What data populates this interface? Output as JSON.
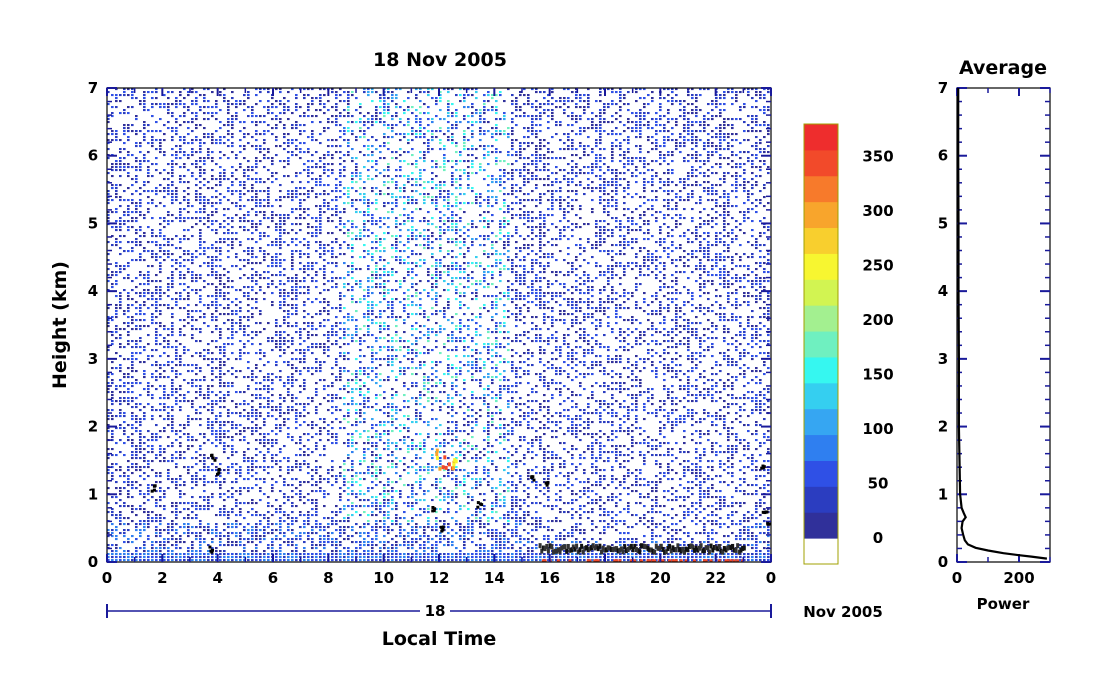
{
  "chart_data": [
    {
      "type": "heatmap",
      "title": "18 Nov 2005",
      "xlabel": "Local Time",
      "ylabel": "Height (km)",
      "x_ticks": [
        "0",
        "2",
        "4",
        "6",
        "8",
        "10",
        "12",
        "14",
        "16",
        "18",
        "20",
        "22",
        "0"
      ],
      "y_ticks": [
        "0",
        "1",
        "2",
        "3",
        "4",
        "5",
        "6",
        "7"
      ],
      "xlim": [
        0,
        24
      ],
      "ylim": [
        0,
        7
      ],
      "date_axis": {
        "day_label": "18",
        "month_label": "Nov 2005"
      },
      "colorbar": {
        "ticks": [
          "0",
          "50",
          "100",
          "150",
          "200",
          "250",
          "300",
          "350"
        ],
        "range": [
          0,
          380
        ],
        "colors": [
          "#ffffff",
          "#30309a",
          "#2b3dc0",
          "#2f50e6",
          "#2f7ff0",
          "#36a6f2",
          "#35cff0",
          "#36f7f0",
          "#6ff0c0",
          "#a3f090",
          "#d2f452",
          "#f7f630",
          "#f8cf2e",
          "#f8a52c",
          "#f77a2b",
          "#f24a2a",
          "#ee2d2d"
        ]
      },
      "features": [
        {
          "name": "boundary layer (strong echo)",
          "x_range": [
            0,
            24
          ],
          "y_range": [
            0,
            0.6
          ]
        },
        {
          "name": "enhanced scatter",
          "x_range": [
            8.5,
            14.5
          ],
          "y_range": [
            0,
            7
          ]
        },
        {
          "name": "strong echo cells",
          "x_range": [
            11.8,
            12.6
          ],
          "y_range": [
            1.4,
            1.7
          ]
        }
      ]
    },
    {
      "type": "line",
      "title": "Average",
      "xlabel": "Power",
      "ylabel": "",
      "x_ticks": [
        "0",
        "200"
      ],
      "y_ticks": [
        "0",
        "1",
        "2",
        "3",
        "4",
        "5",
        "6",
        "7"
      ],
      "xlim": [
        0,
        300
      ],
      "ylim": [
        0,
        7
      ],
      "series": [
        {
          "x": [
            290,
            240,
            200,
            150,
            100,
            60,
            35,
            25,
            20,
            15,
            18,
            28,
            22,
            15,
            10,
            8,
            6,
            6,
            5,
            5,
            4,
            4,
            4,
            4
          ],
          "y": [
            0.05,
            0.08,
            0.1,
            0.13,
            0.17,
            0.21,
            0.26,
            0.32,
            0.4,
            0.5,
            0.6,
            0.66,
            0.72,
            0.8,
            1.0,
            1.5,
            2.0,
            3.0,
            4.0,
            5.0,
            6.0,
            6.5,
            6.8,
            7.0
          ]
        }
      ]
    }
  ]
}
